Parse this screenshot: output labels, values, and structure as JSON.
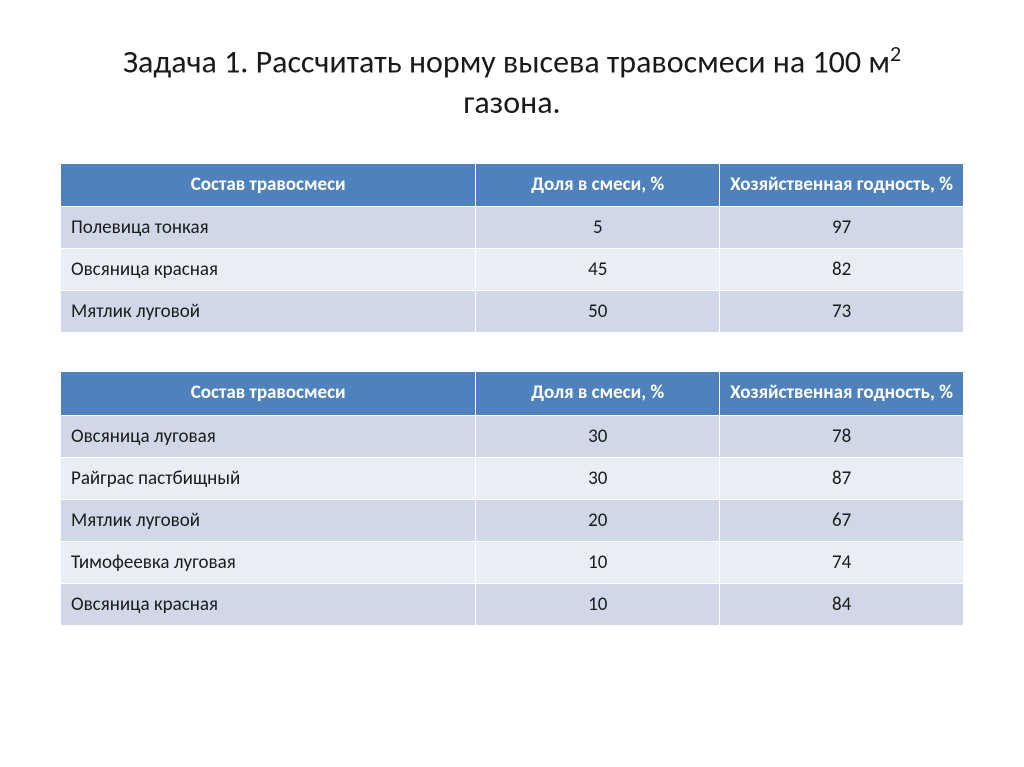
{
  "title_prefix": "Задача 1. Рассчитать норму высева травосмеси на 100 м",
  "title_sup": "2",
  "title_suffix": " газона.",
  "headers": {
    "col1": "Состав травосмеси",
    "col2": "Доля в смеси, %",
    "col3": "Хозяйственная годность, %"
  },
  "table1": {
    "rows": [
      {
        "name": "Полевица тонкая",
        "share": "5",
        "quality": "97"
      },
      {
        "name": "Овсяница красная",
        "share": "45",
        "quality": "82"
      },
      {
        "name": "Мятлик луговой",
        "share": "50",
        "quality": "73"
      }
    ]
  },
  "table2": {
    "rows": [
      {
        "name": "Овсяница луговая",
        "share": "30",
        "quality": "78"
      },
      {
        "name": "Райграс пастбищный",
        "share": "30",
        "quality": "87"
      },
      {
        "name": "Мятлик луговой",
        "share": "20",
        "quality": "67"
      },
      {
        "name": "Тимофеевка луговая",
        "share": "10",
        "quality": "74"
      },
      {
        "name": "Овсяница красная",
        "share": "10",
        "quality": "84"
      }
    ]
  },
  "styling": {
    "header_bg": "#4f81bd",
    "header_text": "#ffffff",
    "row_odd_bg": "#d0d8e8",
    "row_even_bg": "#e9edf4",
    "title_fontsize": 32,
    "body_fontsize": 19,
    "page_bg": "#ffffff"
  }
}
